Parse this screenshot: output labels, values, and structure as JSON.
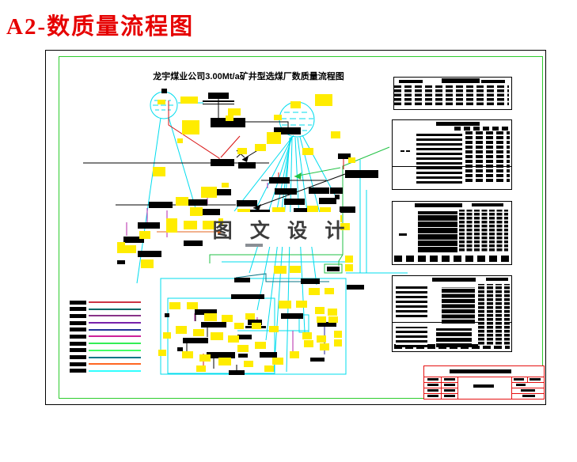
{
  "page": {
    "title": "A2-数质量流程图"
  },
  "drawing": {
    "title": "龙宇煤业公司3.00Mt/a矿井型选煤厂数质量流程图",
    "watermark": "图 文 设 计"
  },
  "legend": {
    "line_colors": [
      "#cc3344",
      "#006666",
      "#883388",
      "#7722aa",
      "#223399",
      "#cc2299",
      "#33ee55",
      "#44ff66",
      "#007788",
      "#ff6622",
      "#33ffff"
    ]
  },
  "colors": {
    "header_red": "#e60000",
    "border_green": "#2ecc2e",
    "titleblock_red": "#e61111",
    "highlight_yellow": "#ffec00",
    "flow_cyan": "#00dcee",
    "flow_teal": "#0a7586",
    "flow_green": "#22c245",
    "flow_red": "#d91111",
    "flow_orange": "#e3641f",
    "flow_magenta": "#b526a8",
    "flow_navy": "#23239a",
    "watermark_gray": "#3c3c3c"
  }
}
